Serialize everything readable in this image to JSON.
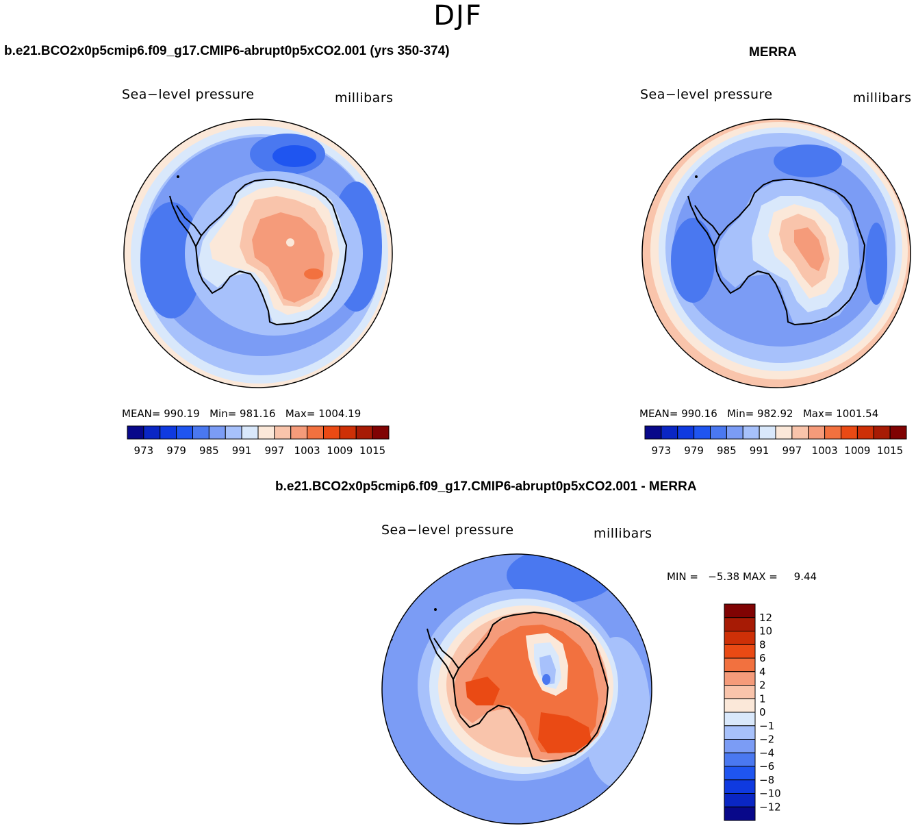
{
  "page": {
    "title": "DJF"
  },
  "panels": [
    {
      "case_title": "b.e21.BCO2x0p5cmip6.f09_g17.CMIP6-abrupt0p5xCO2.001 (yrs 350-374)",
      "variable": "Sea−level pressure",
      "units": "millibars",
      "stats": {
        "mean_label": "MEAN=",
        "mean": "990.19",
        "min_label": "Min=",
        "min": "981.16",
        "max_label": "Max=",
        "max": "1004.19"
      }
    },
    {
      "case_title": "MERRA",
      "variable": "Sea−level pressure",
      "units": "millibars",
      "stats": {
        "mean_label": "MEAN=",
        "mean": "990.16",
        "min_label": "Min=",
        "min": "982.92",
        "max_label": "Max=",
        "max": "1001.54"
      }
    },
    {
      "case_title": "b.e21.BCO2x0p5cmip6.f09_g17.CMIP6-abrupt0p5xCO2.001 - MERRA",
      "variable": "Sea−level pressure",
      "units": "millibars",
      "stats": {
        "min_label": "MIN =",
        "min": "−5.38",
        "max_label": "MAX =",
        "max": "9.44"
      }
    }
  ],
  "colorbar_abs": {
    "ticks": [
      "973",
      "979",
      "985",
      "991",
      "997",
      "1003",
      "1009",
      "1015"
    ],
    "colors": [
      "#08088a",
      "#0a26c4",
      "#0f3ae0",
      "#1f55f0",
      "#4a78f0",
      "#7b9cf5",
      "#a7c1fb",
      "#d9e8fb",
      "#fbe8d9",
      "#f9c4ab",
      "#f59b7a",
      "#f2713f",
      "#ea4a14",
      "#ce3007",
      "#a71b05",
      "#800303"
    ]
  },
  "colorbar_diff": {
    "ticks": [
      "12",
      "10",
      "8",
      "6",
      "4",
      "2",
      "1",
      "0",
      "−1",
      "−2",
      "−4",
      "−6",
      "−8",
      "−10",
      "−12"
    ],
    "colors": [
      "#800303",
      "#a71b05",
      "#ce3007",
      "#ea4a14",
      "#f2713f",
      "#f59b7a",
      "#f9c4ab",
      "#fbe8d9",
      "#d9e8fb",
      "#a7c1fb",
      "#7b9cf5",
      "#4a78f0",
      "#1f55f0",
      "#0f3ae0",
      "#0a26c4",
      "#08088a"
    ]
  },
  "map_colors": {
    "ocean_light": "#d9e8fb",
    "ocean_mid": "#a7c1fb",
    "ocean_blue": "#7b9cf5",
    "ocean_deep": "#4a78f0",
    "warm_light": "#fbe8d9",
    "warm_mid": "#f9c4ab",
    "warm_strong": "#f59b7a",
    "warm_hot": "#f2713f",
    "warm_hotter": "#ea4a14",
    "coast": "#000000"
  }
}
